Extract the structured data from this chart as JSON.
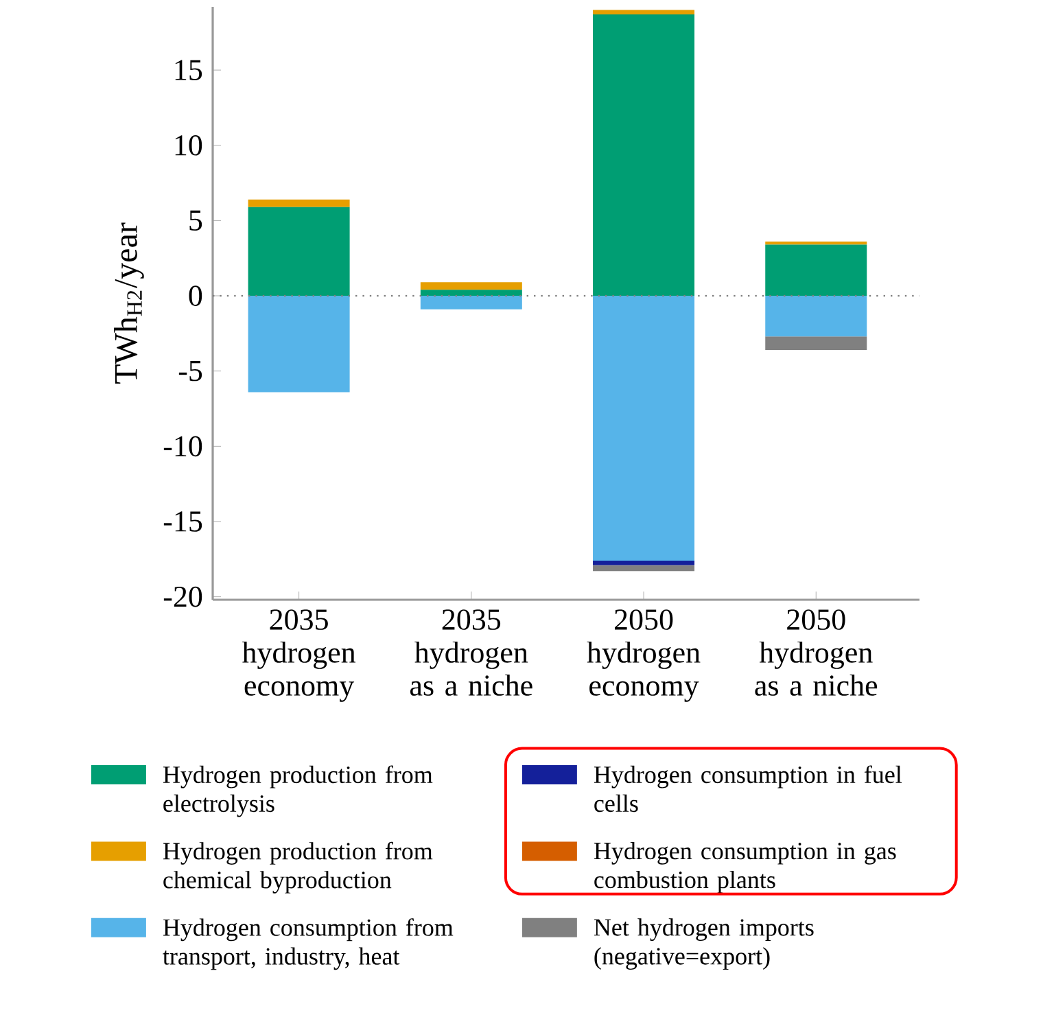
{
  "chart_data": {
    "type": "bar",
    "stacked": true,
    "ylabel": "TWh$_{H2}$/year",
    "categories": [
      "2035 hydrogen economy",
      "2035 hydrogen as a niche",
      "2050 hydrogen economy",
      "2050 hydrogen as a niche"
    ],
    "series": [
      {
        "name": "Hydrogen production from electrolysis",
        "color": "#009e73",
        "values": [
          5.9,
          0.4,
          18.7,
          3.4
        ]
      },
      {
        "name": "Hydrogen production from chemical byproduction",
        "color": "#e69f00",
        "values": [
          0.5,
          0.5,
          0.3,
          0.2
        ]
      },
      {
        "name": "Hydrogen consumption from transport, industry, heat",
        "color": "#56b4e9",
        "values": [
          -6.4,
          -0.9,
          -17.6,
          -2.7
        ]
      },
      {
        "name": "Hydrogen consumption in fuel cells",
        "color": "#14209a",
        "values": [
          0,
          0,
          -0.3,
          0
        ]
      },
      {
        "name": "Hydrogen consumption in gas combustion plants",
        "color": "#d55e00",
        "values": [
          0,
          0,
          0,
          0
        ]
      },
      {
        "name": "Net hydrogen imports (negative=export)",
        "color": "#808080",
        "values": [
          0,
          0,
          -0.4,
          -0.9
        ]
      }
    ],
    "ylim": [
      -20.2,
      19.2
    ],
    "yticks": [
      -20,
      -15,
      -10,
      -5,
      0,
      5,
      10,
      15
    ],
    "ref_lines": [
      {
        "axis": "y",
        "value": 0,
        "line_style": "dotted",
        "color": "#808080"
      }
    ],
    "legend": "bottom"
  }
}
